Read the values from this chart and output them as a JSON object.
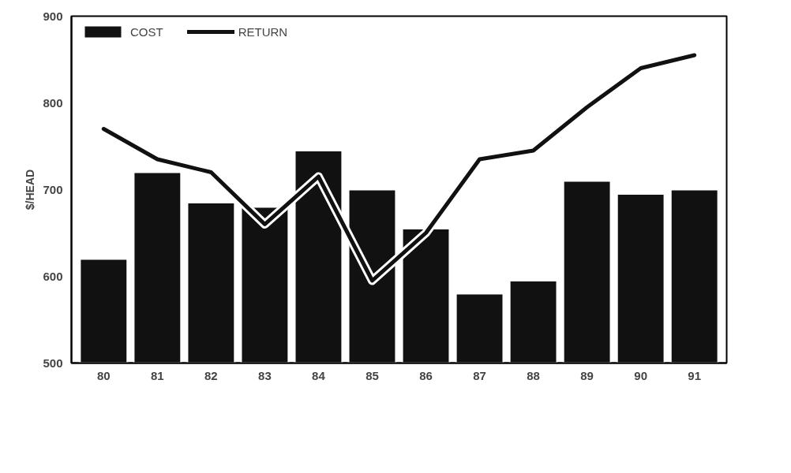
{
  "chart_data": {
    "type": "bar",
    "ylabel": "$/HEAD",
    "categories": [
      "80",
      "81",
      "82",
      "83",
      "84",
      "85",
      "86",
      "87",
      "88",
      "89",
      "90",
      "91"
    ],
    "series": [
      {
        "name": "COST",
        "type": "bar",
        "color": "#111111",
        "values": [
          620,
          720,
          685,
          680,
          745,
          700,
          655,
          580,
          595,
          710,
          695,
          700
        ]
      },
      {
        "name": "RETURN",
        "type": "line",
        "color": "#111111",
        "values": [
          770,
          735,
          720,
          660,
          715,
          595,
          650,
          735,
          745,
          795,
          840,
          855
        ]
      }
    ],
    "ylim": [
      500,
      900
    ],
    "yticks": [
      500,
      600,
      700,
      800,
      900
    ],
    "grid": false,
    "legend": "top left"
  }
}
